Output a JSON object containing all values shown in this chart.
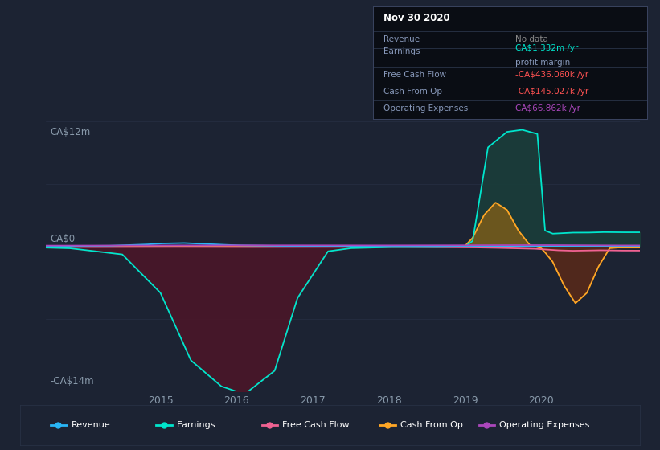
{
  "background_color": "#1c2333",
  "plot_bg_color": "#1c2333",
  "ylabel_top": "CA$12m",
  "ylabel_zero": "CA$0",
  "ylabel_bottom": "-CA$14m",
  "x_ticks": [
    2015,
    2016,
    2017,
    2018,
    2019,
    2020
  ],
  "x_min": 2013.5,
  "x_max": 2021.3,
  "y_min": -14000000,
  "y_max": 12000000,
  "colors": {
    "revenue": "#29b6f6",
    "earnings": "#00e5cc",
    "free_cash_flow": "#f06292",
    "cash_from_op": "#ffa726",
    "operating_expenses": "#ab47bc"
  },
  "fill_colors": {
    "earnings_neg": "#4a1628",
    "earnings_pos": "#1a3d3a",
    "cash_from_op_pos": "#7a5c1a",
    "cash_from_op_neg": "#5a2a18"
  },
  "legend": [
    {
      "label": "Revenue",
      "color": "#29b6f6"
    },
    {
      "label": "Earnings",
      "color": "#00e5cc"
    },
    {
      "label": "Free Cash Flow",
      "color": "#f06292"
    },
    {
      "label": "Cash From Op",
      "color": "#ffa726"
    },
    {
      "label": "Operating Expenses",
      "color": "#ab47bc"
    }
  ],
  "tooltip": {
    "date": "Nov 30 2020",
    "revenue_label": "Revenue",
    "revenue_val": "No data",
    "revenue_color": "#888",
    "earnings_label": "Earnings",
    "earnings_val": "CA$1.332m /yr",
    "earnings_note": "profit margin",
    "earnings_color": "#00e5cc",
    "fcf_label": "Free Cash Flow",
    "fcf_val": "-CA$436.060k /yr",
    "fcf_color": "#ff5252",
    "cop_label": "Cash From Op",
    "cop_val": "-CA$145.027k /yr",
    "cop_color": "#ff5252",
    "opex_label": "Operating Expenses",
    "opex_val": "CA$66.862k /yr",
    "opex_color": "#ab47bc"
  }
}
